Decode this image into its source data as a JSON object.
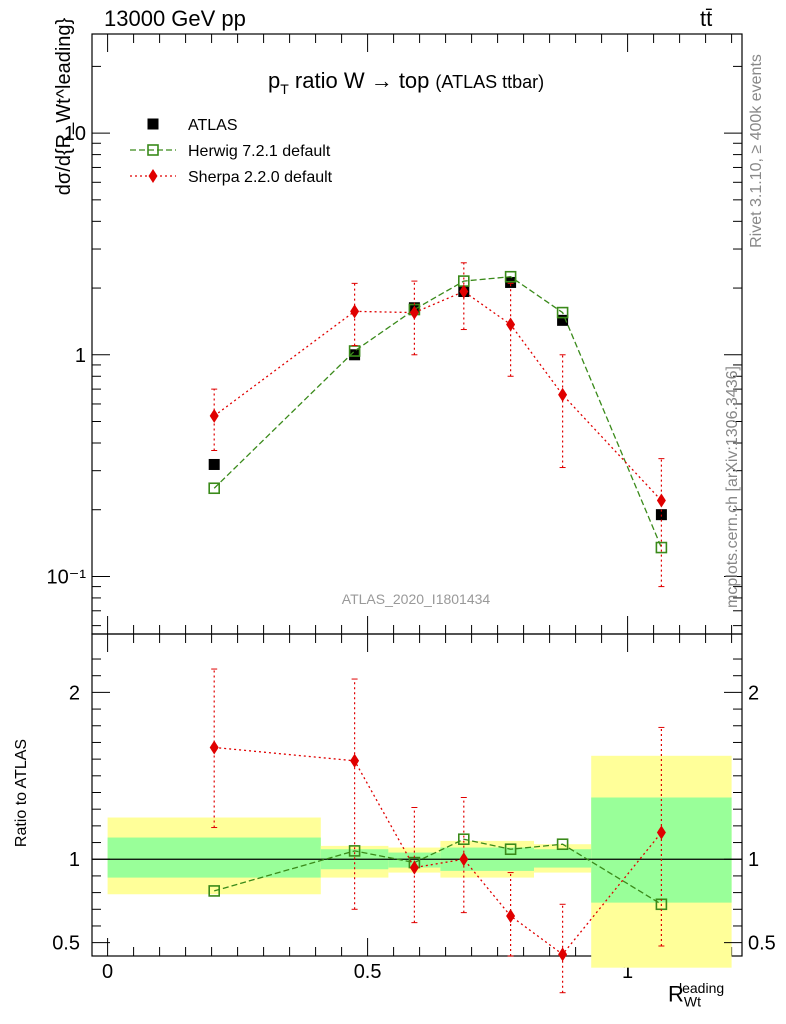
{
  "header": {
    "energy": "13000 GeV pp",
    "process": "tt̄",
    "plot_title": "p",
    "plot_title_sub": "T",
    "plot_title_rest": " ratio W → top",
    "plot_title_tag": "(ATLAS ttbar)",
    "analysis_id": "ATLAS_2020_I1801434"
  },
  "side_text": {
    "rivet": "Rivet 3.1.10, ≥ 400k events",
    "source": "mcplots.cern.ch [arXiv:1306.3436]"
  },
  "axes": {
    "main_ylabel": "dσ/d{R_Wt^leading}",
    "ratio_ylabel": "Ratio to ATLAS",
    "xlabel": "R",
    "xlabel_sub": "Wt",
    "xlabel_sup": "leading"
  },
  "legend": [
    {
      "name": "ATLAS",
      "color": "#000000",
      "marker": "square-filled"
    },
    {
      "name": "Herwig 7.2.1 default",
      "color": "#3a8a1a",
      "marker": "square-open"
    },
    {
      "name": "Sherpa 2.2.0 default",
      "color": "#e00000",
      "marker": "diamond"
    }
  ],
  "chart_data": [
    {
      "type": "scatter",
      "panel": "main",
      "yscale": "log",
      "xlim": [
        -0.03,
        1.22
      ],
      "ylim": [
        0.055,
        28
      ],
      "ytick_labels": [
        "10⁻¹",
        "1",
        "10"
      ],
      "series": [
        {
          "name": "ATLAS",
          "x": [
            0.205,
            0.475,
            0.59,
            0.685,
            0.775,
            0.875,
            1.065
          ],
          "y": [
            0.32,
            1.0,
            1.63,
            1.93,
            2.12,
            1.43,
            0.19
          ]
        },
        {
          "name": "Herwig 7.2.1 default",
          "x": [
            0.205,
            0.475,
            0.59,
            0.685,
            0.775,
            0.875,
            1.065
          ],
          "y": [
            0.25,
            1.04,
            1.6,
            2.15,
            2.25,
            1.55,
            0.135
          ]
        },
        {
          "name": "Sherpa 2.2.0 default",
          "x": [
            0.205,
            0.475,
            0.59,
            0.685,
            0.775,
            0.875,
            1.065
          ],
          "y": [
            0.53,
            1.57,
            1.55,
            1.93,
            1.37,
            0.66,
            0.22
          ],
          "yerr_low": [
            0.37,
            1.1,
            1.0,
            1.3,
            0.8,
            0.31,
            0.09
          ],
          "yerr_high": [
            0.7,
            2.1,
            2.15,
            2.6,
            2.1,
            1.0,
            0.34
          ]
        }
      ]
    },
    {
      "type": "scatter",
      "panel": "ratio",
      "xlim": [
        -0.03,
        1.22
      ],
      "ylim": [
        0.42,
        2.35
      ],
      "xtick_labels": [
        "0",
        "0.5",
        "1"
      ],
      "ytick_labels": [
        "0.5",
        "1",
        "2"
      ],
      "bands": [
        {
          "xlo": 0.0,
          "xhi": 0.41,
          "inner": [
            0.89,
            1.13
          ],
          "outer": [
            0.79,
            1.25
          ]
        },
        {
          "xlo": 0.41,
          "xhi": 0.54,
          "inner": [
            0.94,
            1.06
          ],
          "outer": [
            0.89,
            1.08
          ]
        },
        {
          "xlo": 0.54,
          "xhi": 0.64,
          "inner": [
            0.95,
            1.04
          ],
          "outer": [
            0.92,
            1.07
          ]
        },
        {
          "xlo": 0.64,
          "xhi": 0.82,
          "inner": [
            0.93,
            1.07
          ],
          "outer": [
            0.89,
            1.11
          ]
        },
        {
          "xlo": 0.82,
          "xhi": 0.93,
          "inner": [
            0.95,
            1.06
          ],
          "outer": [
            0.92,
            1.09
          ]
        },
        {
          "xlo": 0.93,
          "xhi": 1.2,
          "inner": [
            0.74,
            1.37
          ],
          "outer": [
            0.35,
            1.62
          ]
        }
      ],
      "series": [
        {
          "name": "Herwig 7.2.1 default",
          "x": [
            0.205,
            0.475,
            0.59,
            0.685,
            0.775,
            0.875,
            1.065
          ],
          "y": [
            0.81,
            1.05,
            0.98,
            1.12,
            1.06,
            1.09,
            0.73
          ]
        },
        {
          "name": "Sherpa 2.2.0 default",
          "x": [
            0.205,
            0.475,
            0.59,
            0.685,
            0.775,
            0.875,
            1.065
          ],
          "y": [
            1.67,
            1.59,
            0.95,
            1.0,
            0.66,
            0.43,
            1.16
          ],
          "yerr_low": [
            1.19,
            0.7,
            0.62,
            0.68,
            0.42,
            0.2,
            0.48
          ],
          "yerr_high": [
            2.14,
            2.08,
            1.31,
            1.37,
            0.92,
            0.73,
            1.79
          ]
        }
      ]
    }
  ]
}
